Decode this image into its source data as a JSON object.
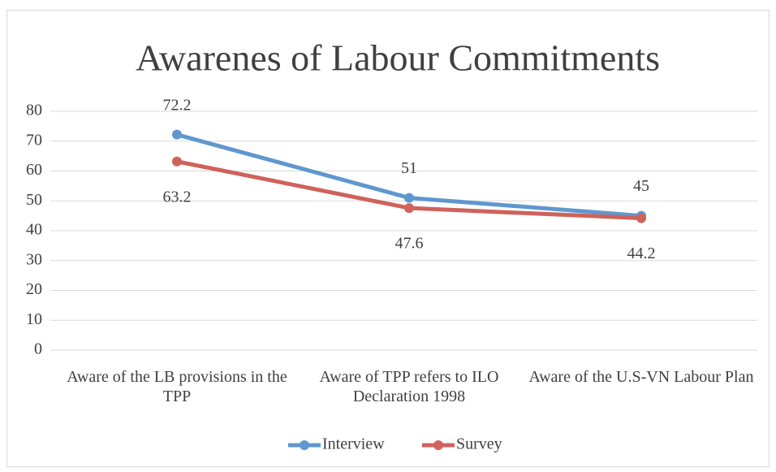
{
  "chart_data": {
    "type": "line",
    "title": "Awarenes of Labour Commitments",
    "categories": [
      "Aware of the LB provisions in the TPP",
      "Aware of TPP refers to ILO Declaration 1998",
      "Aware of the U.S-VN Labour Plan"
    ],
    "series": [
      {
        "name": "Interview",
        "color": "#5f97cf",
        "values": [
          72.2,
          51,
          45
        ]
      },
      {
        "name": "Survey",
        "color": "#cf625b",
        "values": [
          63.2,
          47.6,
          44.2
        ]
      }
    ],
    "ylim": [
      0,
      80
    ],
    "yticks": [
      0,
      10,
      20,
      30,
      40,
      50,
      60,
      70,
      80
    ],
    "grid": true,
    "legend": "bottom"
  }
}
